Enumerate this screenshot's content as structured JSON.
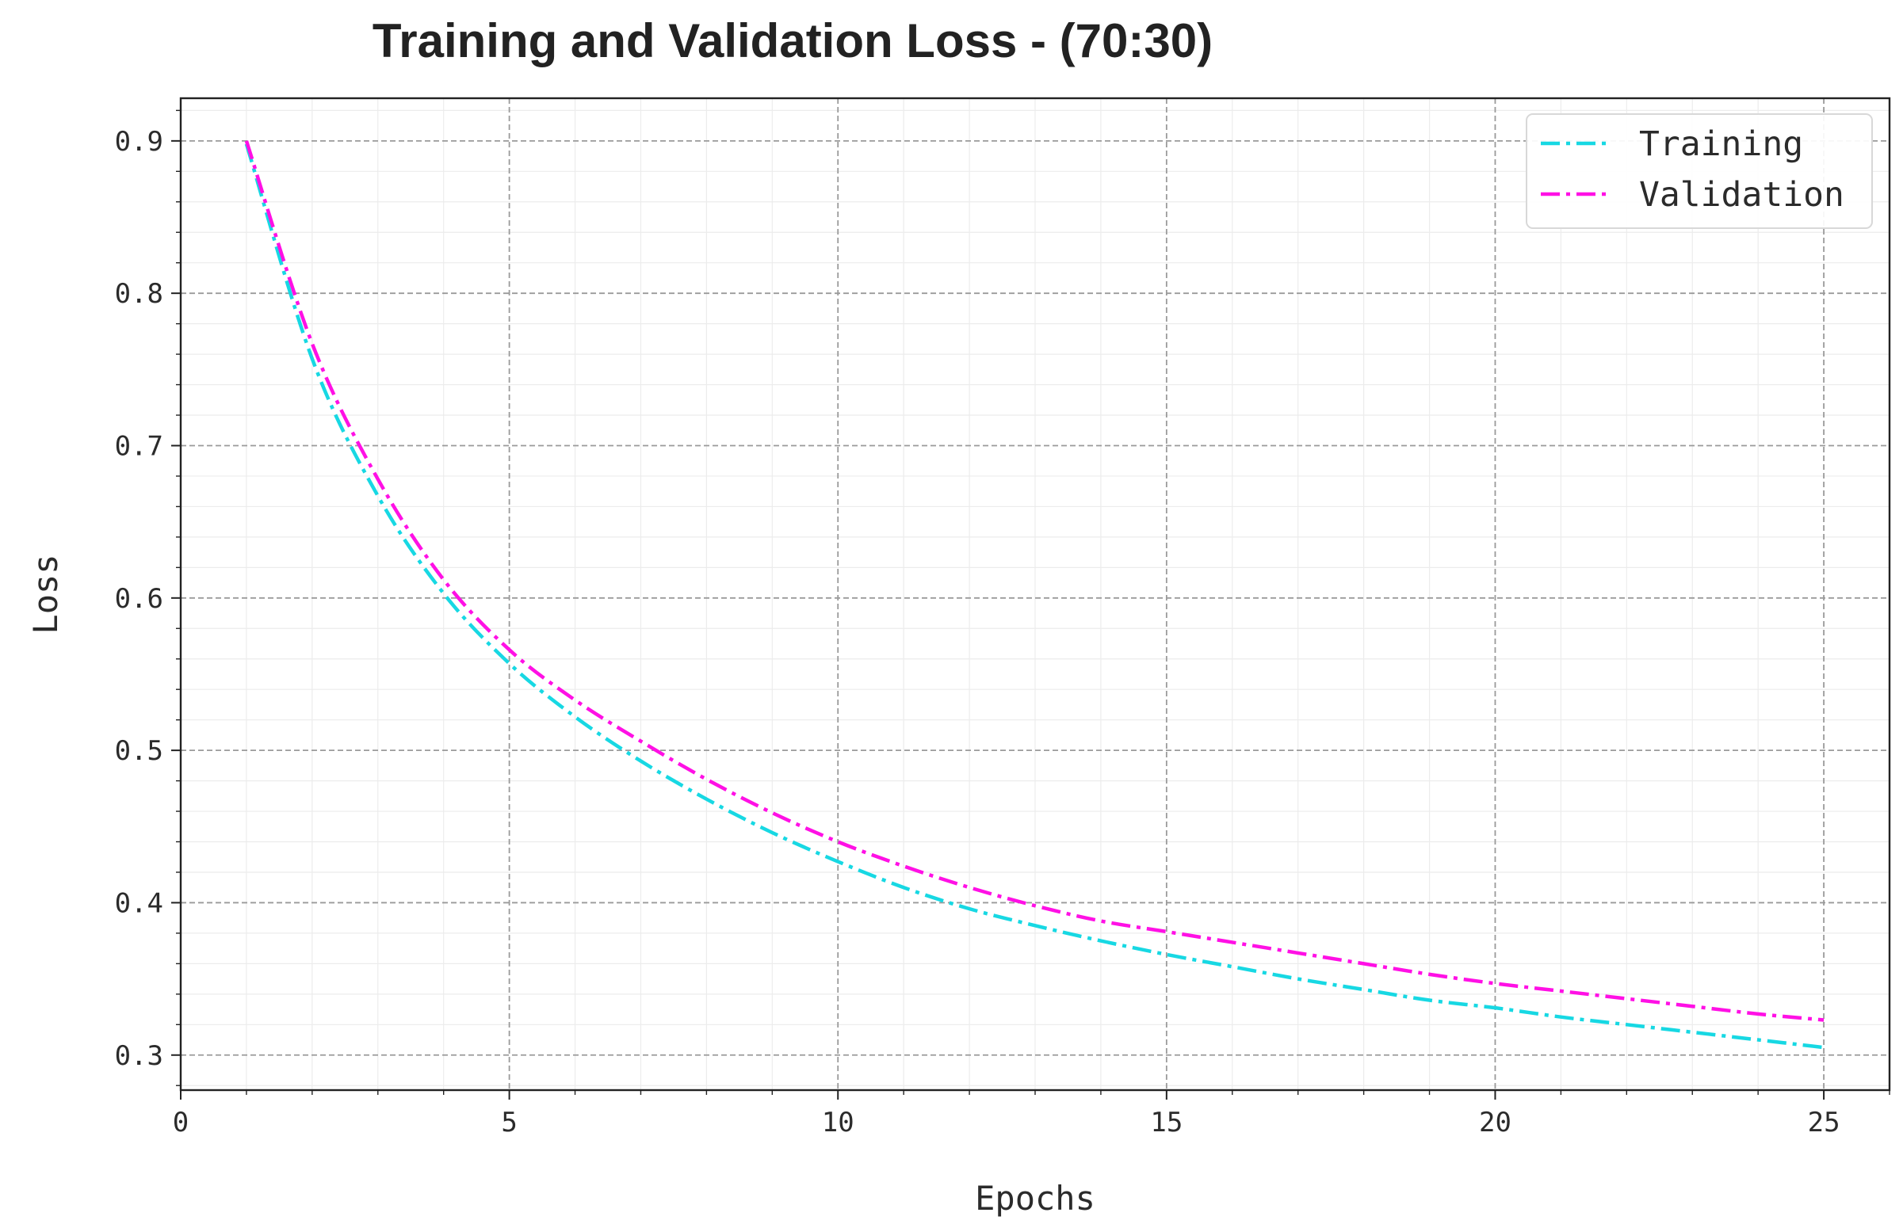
{
  "chart_data": {
    "type": "line",
    "title": "Training and Validation Loss - (70:30)",
    "xlabel": "Epochs",
    "ylabel": "Loss",
    "xlim": [
      0,
      26
    ],
    "ylim": [
      0.277,
      0.928
    ],
    "x_ticks": [
      0,
      5,
      10,
      15,
      20,
      25
    ],
    "y_ticks": [
      0.3,
      0.4,
      0.5,
      0.6,
      0.7,
      0.8,
      0.9
    ],
    "x_tick_labels": [
      "0",
      "5",
      "10",
      "15",
      "20",
      "25"
    ],
    "y_tick_labels": [
      "0.3",
      "0.4",
      "0.5",
      "0.6",
      "0.7",
      "0.8",
      "0.9"
    ],
    "x_minor_step": 1,
    "y_minor_step": 0.02,
    "grid": true,
    "legend_position": "top-right",
    "x": [
      1,
      2,
      3,
      4,
      5,
      6,
      7,
      8,
      9,
      10,
      11,
      12,
      13,
      14,
      15,
      16,
      17,
      18,
      19,
      20,
      21,
      22,
      23,
      24,
      25
    ],
    "series": [
      {
        "name": "Training",
        "color": "#17d8e3",
        "values": [
          0.898,
          0.757,
          0.667,
          0.603,
          0.557,
          0.522,
          0.493,
          0.468,
          0.446,
          0.427,
          0.41,
          0.396,
          0.385,
          0.375,
          0.366,
          0.358,
          0.35,
          0.343,
          0.336,
          0.331,
          0.325,
          0.32,
          0.315,
          0.31,
          0.305
        ]
      },
      {
        "name": "Validation",
        "color": "#ff10e5",
        "values": [
          0.9,
          0.767,
          0.678,
          0.612,
          0.566,
          0.533,
          0.506,
          0.481,
          0.459,
          0.44,
          0.424,
          0.41,
          0.398,
          0.388,
          0.381,
          0.374,
          0.367,
          0.36,
          0.353,
          0.347,
          0.342,
          0.337,
          0.332,
          0.327,
          0.323
        ]
      }
    ]
  }
}
